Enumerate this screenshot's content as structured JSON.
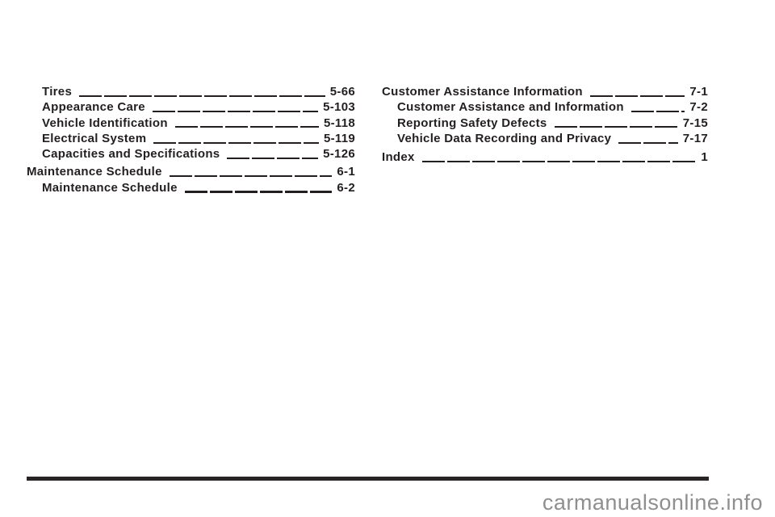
{
  "page": {
    "kind": "owner-manual-table-of-contents-scan",
    "background_color": "#ffffff",
    "ink_color": "#231f20"
  },
  "toc": {
    "left_column": {
      "entries": [
        {
          "label": "Tires",
          "page": "5-66",
          "level": "sub"
        },
        {
          "label": "Appearance Care",
          "page": "5-103",
          "level": "sub"
        },
        {
          "label": "Vehicle Identification",
          "page": "5-118",
          "level": "sub"
        },
        {
          "label": "Electrical System",
          "page": "5-119",
          "level": "sub"
        },
        {
          "label": "Capacities and Specifications",
          "page": "5-126",
          "level": "sub"
        },
        {
          "label": "Maintenance Schedule",
          "page": "6-1",
          "level": "section"
        },
        {
          "label": "Maintenance Schedule",
          "page": "6-2",
          "level": "sub"
        }
      ]
    },
    "right_column": {
      "entries": [
        {
          "label": "Customer Assistance Information",
          "page": "7-1",
          "level": "section"
        },
        {
          "label": "Customer Assistance and Information",
          "page": "7-2",
          "level": "sub"
        },
        {
          "label": "Reporting Safety Defects",
          "page": "7-15",
          "level": "sub"
        },
        {
          "label": "Vehicle Data Recording and Privacy",
          "page": "7-17",
          "level": "sub"
        },
        {
          "label": "Index",
          "page": "1",
          "level": "section"
        }
      ]
    }
  },
  "footer": {
    "watermark_text": "carmanualsonline.info",
    "watermark_color": "#8f8f8f",
    "rule_color": "#282425"
  }
}
